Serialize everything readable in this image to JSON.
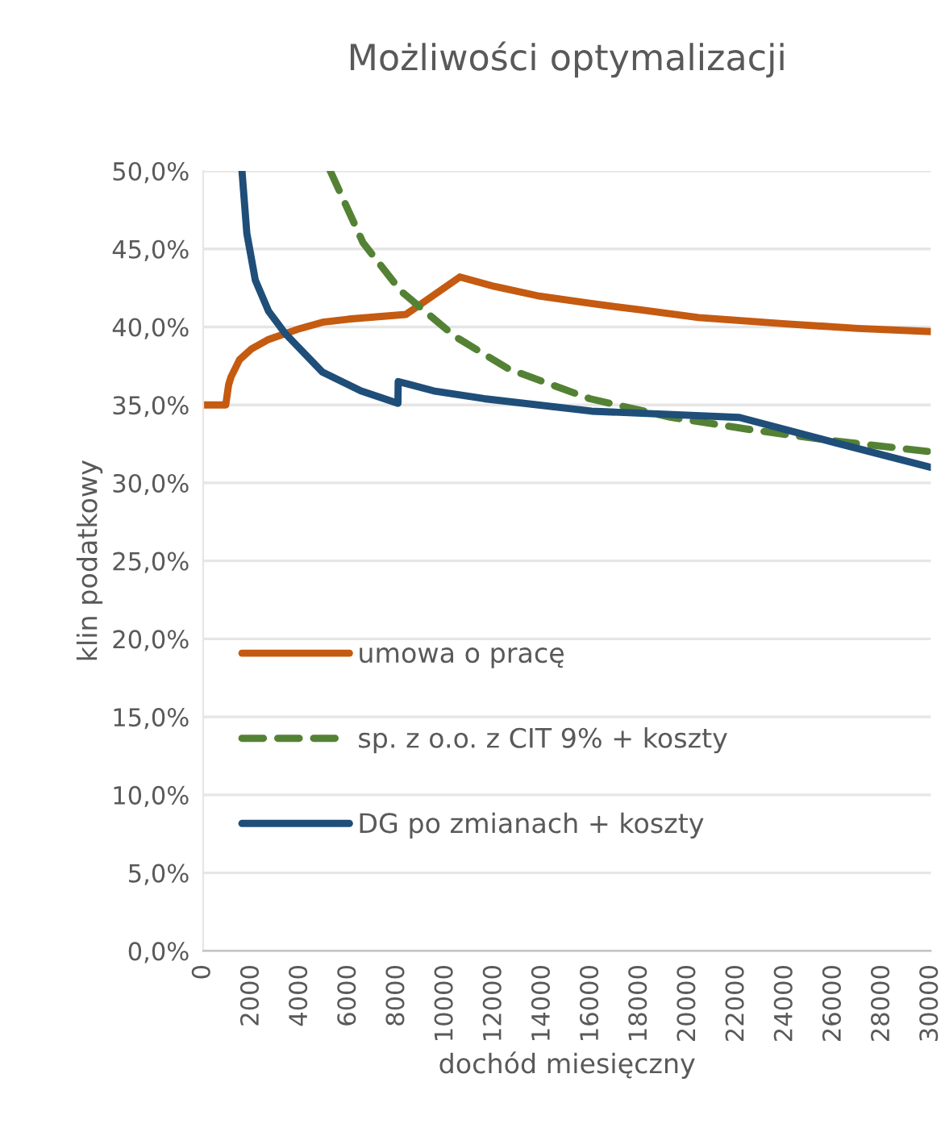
{
  "chart_data": {
    "type": "line",
    "title": "Możliwości optymalizacji",
    "xlabel": "dochód miesięczny",
    "ylabel": "klin podatkowy",
    "xlim": [
      0,
      30000
    ],
    "xticks": [
      0,
      2000,
      4000,
      6000,
      8000,
      10000,
      12000,
      14000,
      16000,
      18000,
      20000,
      22000,
      24000,
      26000,
      28000,
      30000
    ],
    "ylim": [
      0,
      50
    ],
    "yticks": [
      {
        "value": 0,
        "label": "0,0%"
      },
      {
        "value": 5,
        "label": "5,0%"
      },
      {
        "value": 10,
        "label": "10,0%"
      },
      {
        "value": 15,
        "label": "15,0%"
      },
      {
        "value": 20,
        "label": "20,0%"
      },
      {
        "value": 25,
        "label": "25,0%"
      },
      {
        "value": 30,
        "label": "30,0%"
      },
      {
        "value": 35,
        "label": "35,0%"
      },
      {
        "value": 40,
        "label": "40,0%"
      },
      {
        "value": 45,
        "label": "45,0%"
      },
      {
        "value": 50,
        "label": "50,0%"
      }
    ],
    "grid": "y",
    "legend": "left",
    "marker": "none",
    "series": [
      {
        "name": "umowa o pracę",
        "color": "#c55a11",
        "line_style": "solid",
        "x": [
          0,
          930,
          1050,
          1150,
          1500,
          2000,
          2700,
          4000,
          4920,
          6000,
          8360,
          10580,
          12000,
          13780,
          16000,
          18000,
          20430,
          24000,
          27000,
          30000
        ],
        "values": [
          35,
          35,
          36.3,
          36.8,
          37.9,
          38.6,
          39.2,
          39.9,
          40.3,
          40.5,
          40.8,
          43.2,
          42.6,
          42.0,
          41.5,
          41.1,
          40.6,
          40.2,
          39.9,
          39.7
        ]
      },
      {
        "name": "sp. z o.o. z CIT 9% + koszty",
        "color": "#548235",
        "line_style": "dashed",
        "x": [
          5240,
          6590,
          8150,
          10370,
          12600,
          15940,
          19290,
          22630,
          25970,
          30000
        ],
        "values": [
          50,
          45.4,
          42.3,
          39.4,
          37.3,
          35.4,
          34.2,
          33.4,
          32.7,
          32.0
        ]
      },
      {
        "name": "DG po zmianach + koszty",
        "color": "#1f4e79",
        "line_style": "solid",
        "x": [
          1600,
          1800,
          2150,
          2700,
          3370,
          4920,
          6500,
          8030,
          8040,
          9500,
          11580,
          16010,
          22110,
          26000,
          30000
        ],
        "values": [
          50,
          46,
          43.0,
          41.0,
          39.6,
          37.1,
          35.9,
          35.1,
          36.5,
          35.9,
          35.4,
          34.6,
          34.2,
          32.6,
          31.0
        ]
      }
    ]
  }
}
